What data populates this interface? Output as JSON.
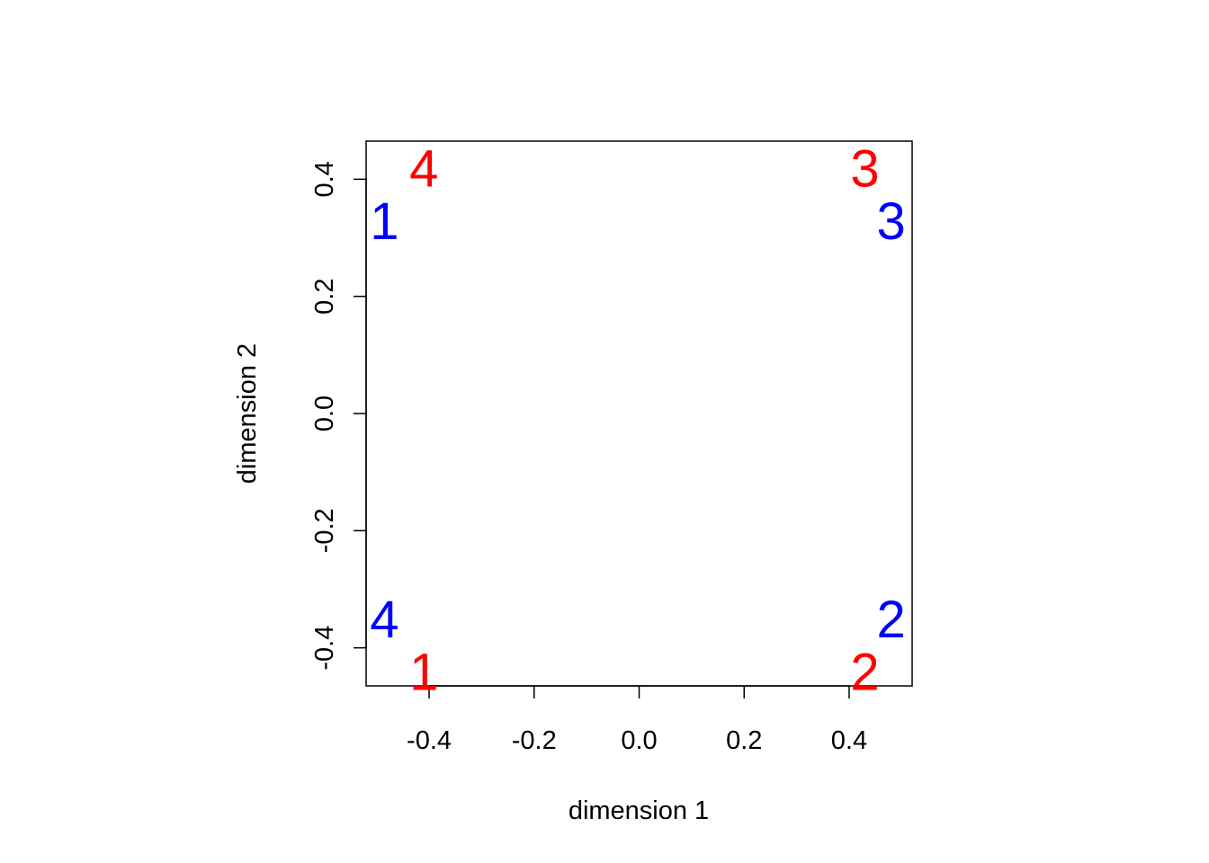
{
  "chart_data": {
    "type": "scatter",
    "title": "",
    "xlabel": "dimension 1",
    "ylabel": "dimension 2",
    "xlim": [
      -0.52,
      0.52
    ],
    "ylim": [
      -0.465,
      0.465
    ],
    "x_ticks": [
      -0.4,
      -0.2,
      0.0,
      0.2,
      0.4
    ],
    "x_tick_labels": [
      "-0.4",
      "-0.2",
      "0.0",
      "0.2",
      "0.4"
    ],
    "y_ticks": [
      -0.4,
      -0.2,
      0.0,
      0.2,
      0.4
    ],
    "y_tick_labels": [
      "-0.4",
      "-0.2",
      "0.0",
      "0.2",
      "0.4"
    ],
    "grid": false,
    "legend": "none",
    "series": [
      {
        "name": "red",
        "color": "#FF0000",
        "points": [
          {
            "label": "1",
            "x": -0.41,
            "y": -0.44
          },
          {
            "label": "2",
            "x": 0.43,
            "y": -0.44
          },
          {
            "label": "3",
            "x": 0.43,
            "y": 0.42
          },
          {
            "label": "4",
            "x": -0.41,
            "y": 0.42
          }
        ]
      },
      {
        "name": "blue",
        "color": "#0000FF",
        "points": [
          {
            "label": "1",
            "x": -0.485,
            "y": 0.33
          },
          {
            "label": "2",
            "x": 0.48,
            "y": -0.35
          },
          {
            "label": "3",
            "x": 0.48,
            "y": 0.33
          },
          {
            "label": "4",
            "x": -0.485,
            "y": -0.35
          }
        ]
      }
    ]
  }
}
